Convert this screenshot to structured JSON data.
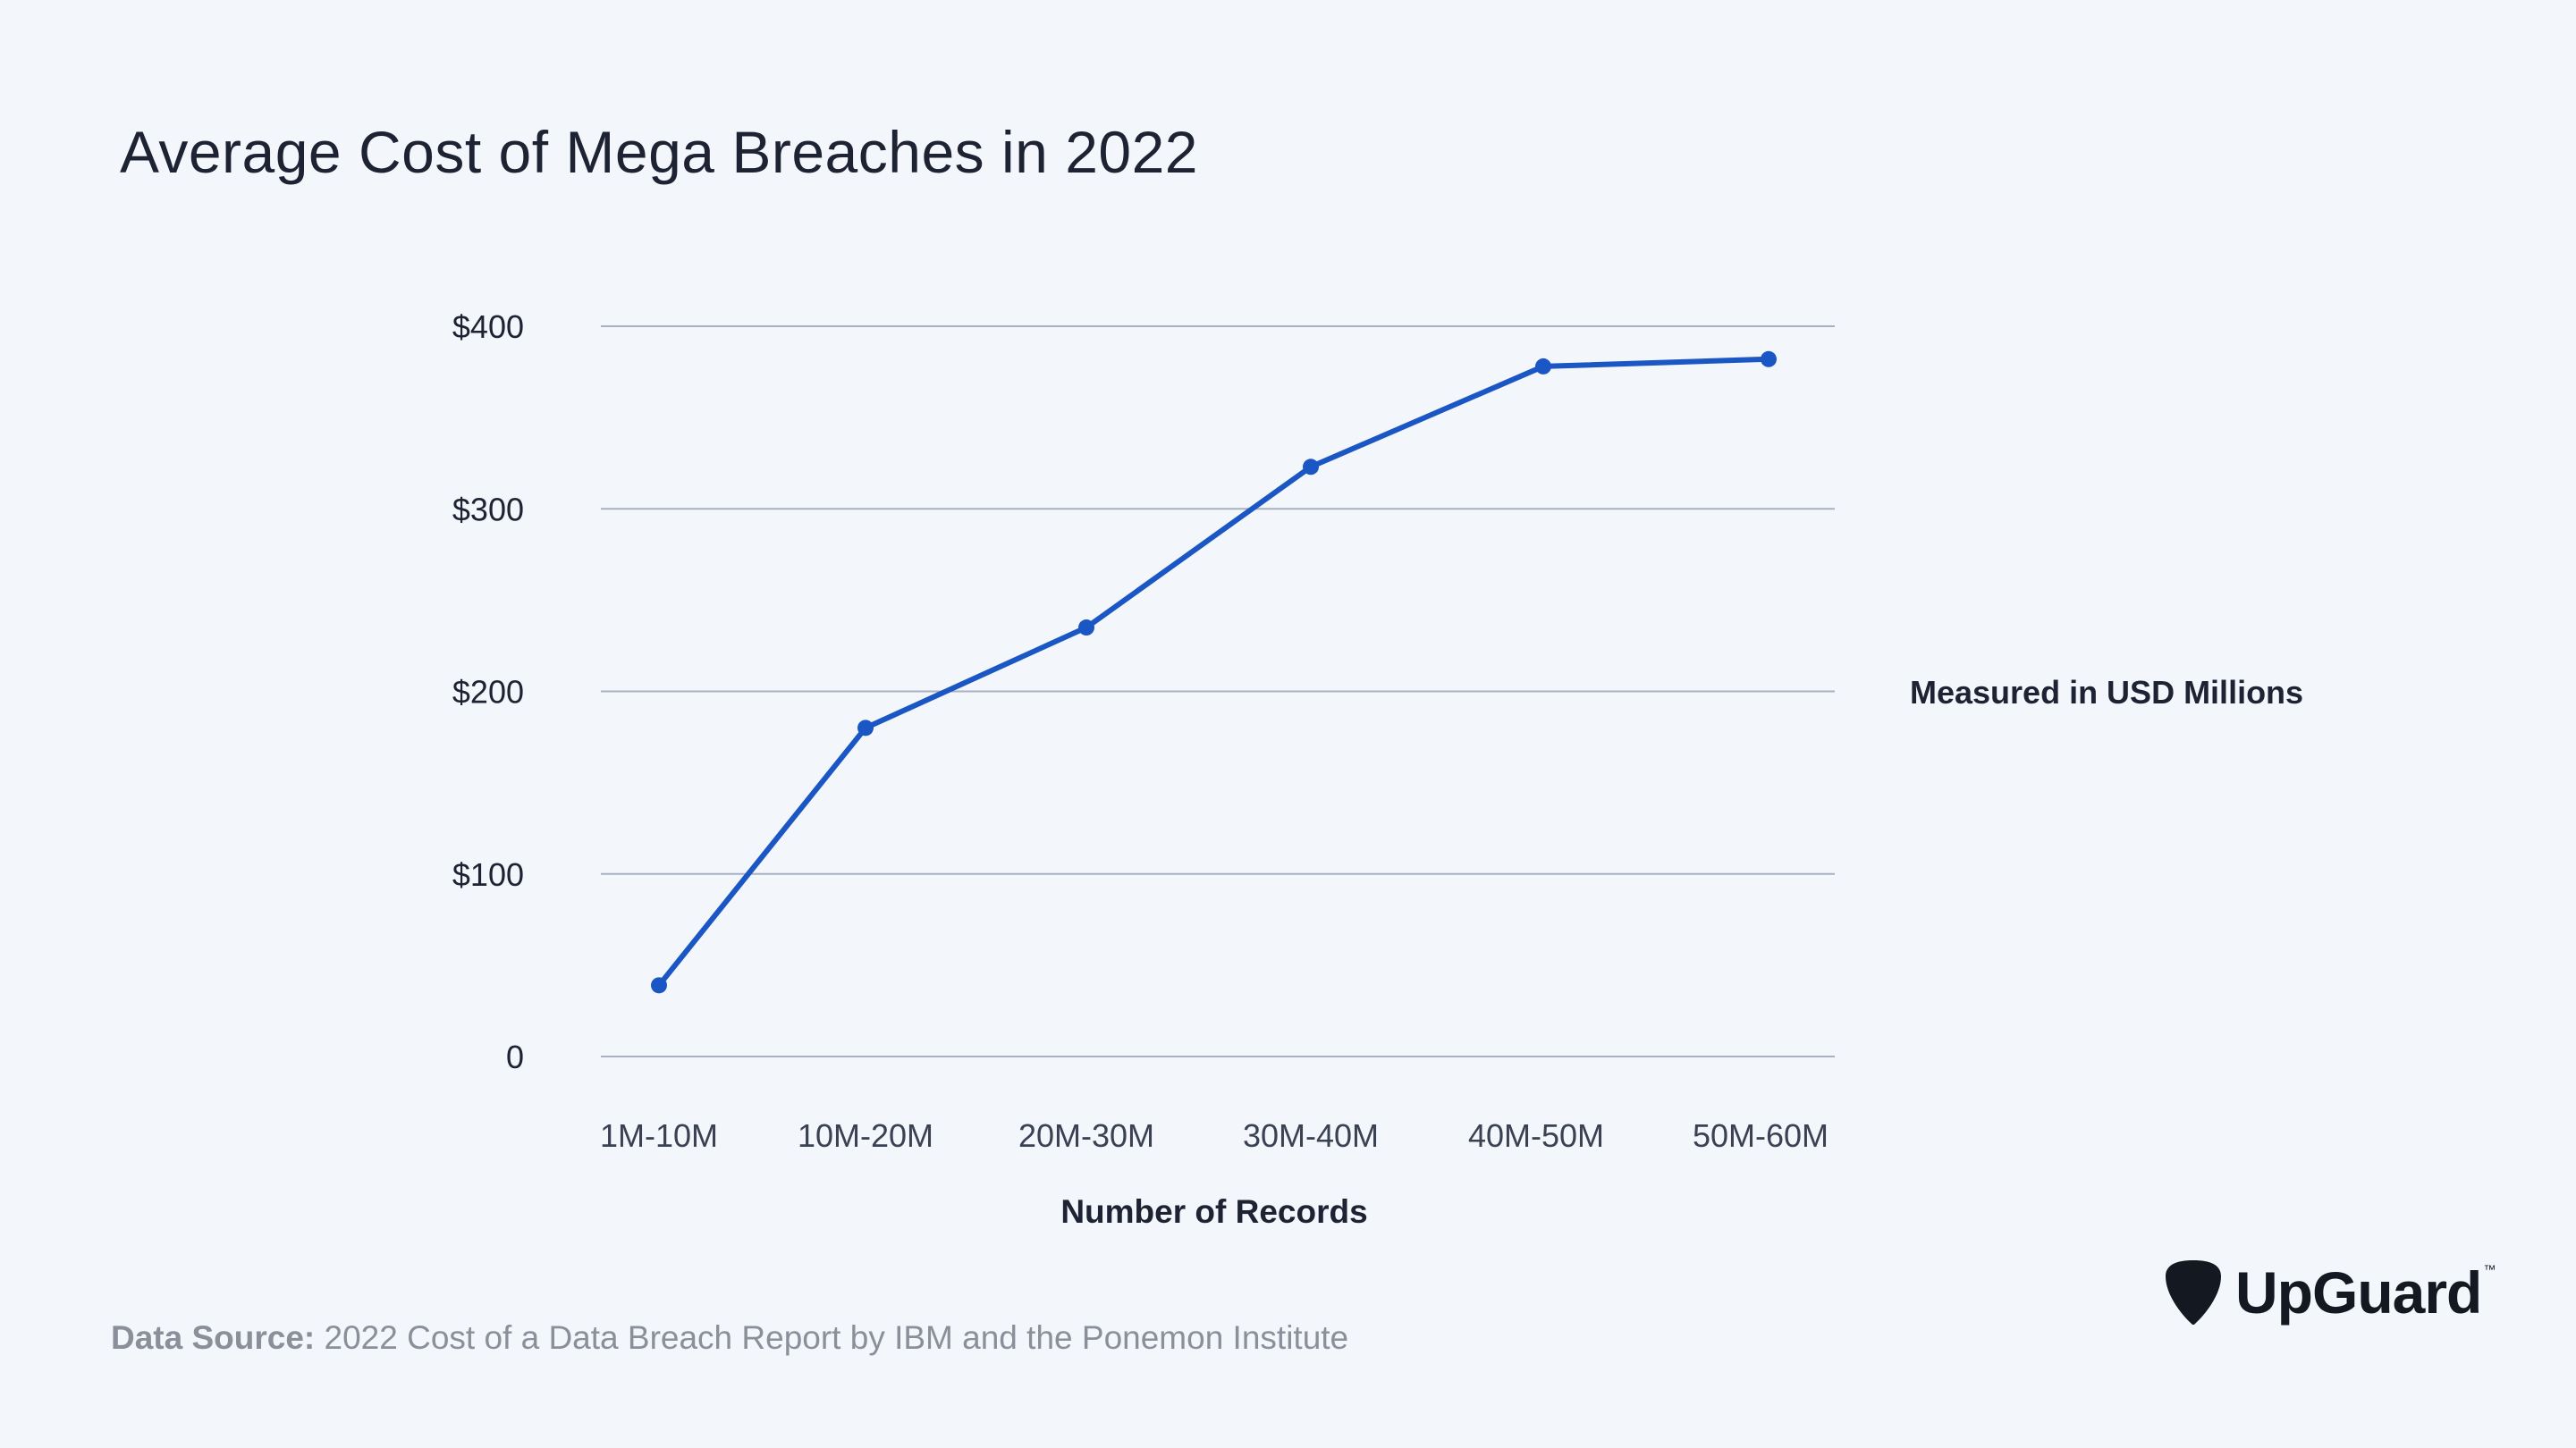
{
  "title": "Average Cost of Mega Breaches in 2022",
  "annotation": "Measured in USD Millions",
  "source": {
    "label": "Data Source:",
    "text": "2022 Cost of a Data Breach Report by IBM and the Ponemon Institute"
  },
  "brand": {
    "name": "UpGuard",
    "trademark": "™"
  },
  "colors": {
    "background": "#f3f6fb",
    "line": "#1a56c4",
    "grid": "#a9b0c2",
    "text": "#1d2333"
  },
  "chart_data": {
    "type": "line",
    "categories": [
      "1M-10M",
      "10M-20M",
      "20M-30M",
      "30M-40M",
      "40M-50M",
      "50M-60M"
    ],
    "series": [
      {
        "values": [
          39,
          180,
          235,
          323,
          378,
          382
        ]
      }
    ],
    "ylim": [
      0,
      400
    ],
    "yticks": [
      0,
      100,
      200,
      300,
      400
    ],
    "ytick_labels": [
      "0",
      "$100",
      "$200",
      "$300",
      "$400"
    ],
    "xlabel": "Number of Records",
    "ylabel": "",
    "grid": true,
    "legend": "none"
  }
}
